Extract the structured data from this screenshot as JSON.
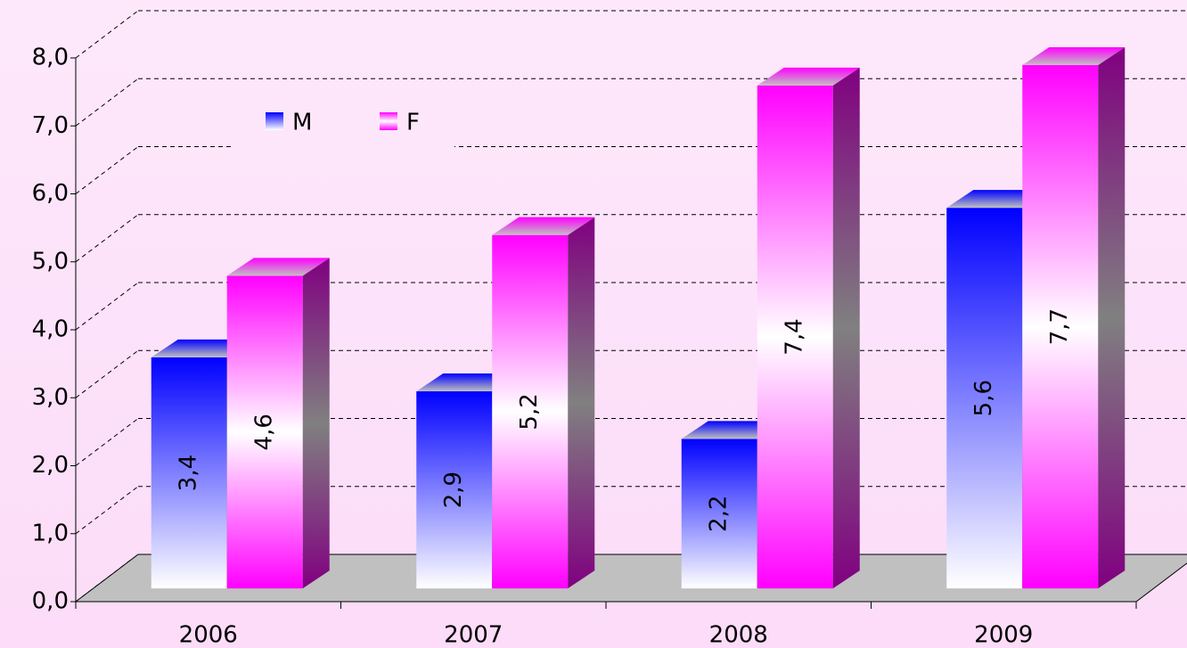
{
  "chart_data": {
    "type": "bar",
    "categories": [
      "2006",
      "2007",
      "2008",
      "2009"
    ],
    "series": [
      {
        "name": "M",
        "color": "#0000ff",
        "values": [
          3.4,
          2.9,
          2.2,
          5.6
        ],
        "value_labels": [
          "3,4",
          "2,9",
          "2,2",
          "5,6"
        ]
      },
      {
        "name": "F",
        "color": "#ff00ff",
        "values": [
          4.6,
          5.2,
          7.4,
          7.7
        ],
        "value_labels": [
          "4,6",
          "5,2",
          "7,4",
          "7,7"
        ]
      }
    ],
    "ylim": [
      0,
      8
    ],
    "yticks": [
      {
        "value": 0,
        "label": "0,0"
      },
      {
        "value": 1,
        "label": "1,0"
      },
      {
        "value": 2,
        "label": "2,0"
      },
      {
        "value": 3,
        "label": "3,0"
      },
      {
        "value": 4,
        "label": "4,0"
      },
      {
        "value": 5,
        "label": "5,0"
      },
      {
        "value": 6,
        "label": "6,0"
      },
      {
        "value": 7,
        "label": "7,0"
      },
      {
        "value": 8,
        "label": "8,0"
      }
    ],
    "grid": true
  }
}
